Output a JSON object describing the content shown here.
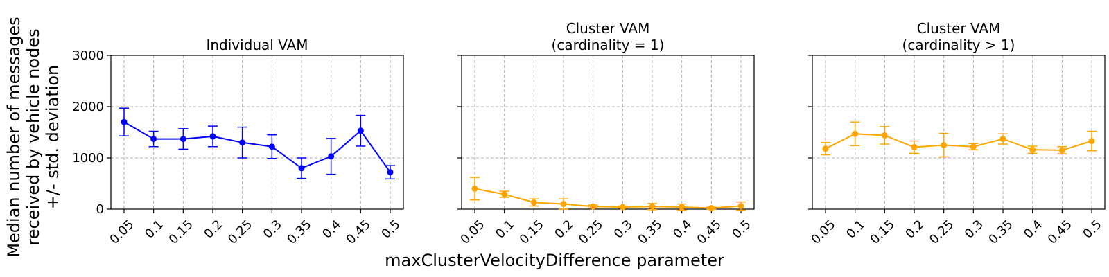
{
  "figure": {
    "ylabel": [
      "Median number of messages",
      "received by vehicle nodes",
      "+/- std. deviation"
    ],
    "xlabel": "maxClusterVelocityDifference parameter"
  },
  "chart_data": [
    {
      "type": "line",
      "title": [
        "Individual VAM"
      ],
      "categories": [
        "0.05",
        "0.1",
        "0.15",
        "0.2",
        "0.25",
        "0.3",
        "0.35",
        "0.4",
        "0.45",
        "0.5"
      ],
      "ylim": [
        0,
        3000
      ],
      "yticks": [
        0,
        1000,
        2000,
        3000
      ],
      "show_ytick_labels": true,
      "grid": true,
      "color": "#0000ff",
      "values": [
        1700,
        1370,
        1370,
        1420,
        1300,
        1220,
        800,
        1030,
        1530,
        720
      ],
      "errors": [
        270,
        150,
        200,
        200,
        300,
        230,
        200,
        350,
        300,
        130
      ]
    },
    {
      "type": "line",
      "title": [
        "Cluster VAM",
        "(cardinality = 1)"
      ],
      "categories": [
        "0.05",
        "0.1",
        "0.15",
        "0.2",
        "0.25",
        "0.3",
        "0.35",
        "0.4",
        "0.45",
        "0.5"
      ],
      "ylim": [
        0,
        3000
      ],
      "yticks": [
        0,
        1000,
        2000,
        3000
      ],
      "show_ytick_labels": false,
      "grid": true,
      "color": "#ffa500",
      "values": [
        400,
        290,
        130,
        100,
        50,
        40,
        50,
        40,
        20,
        60
      ],
      "errors": [
        220,
        60,
        70,
        100,
        30,
        20,
        60,
        60,
        20,
        80
      ]
    },
    {
      "type": "line",
      "title": [
        "Cluster VAM",
        "(cardinality > 1)"
      ],
      "categories": [
        "0.05",
        "0.1",
        "0.15",
        "0.2",
        "0.25",
        "0.3",
        "0.35",
        "0.4",
        "0.45",
        "0.5"
      ],
      "ylim": [
        0,
        3000
      ],
      "yticks": [
        0,
        1000,
        2000,
        3000
      ],
      "show_ytick_labels": false,
      "grid": true,
      "color": "#ffa500",
      "values": [
        1180,
        1470,
        1440,
        1210,
        1250,
        1220,
        1370,
        1160,
        1150,
        1330
      ],
      "errors": [
        120,
        230,
        170,
        120,
        230,
        60,
        100,
        70,
        70,
        190
      ]
    }
  ]
}
